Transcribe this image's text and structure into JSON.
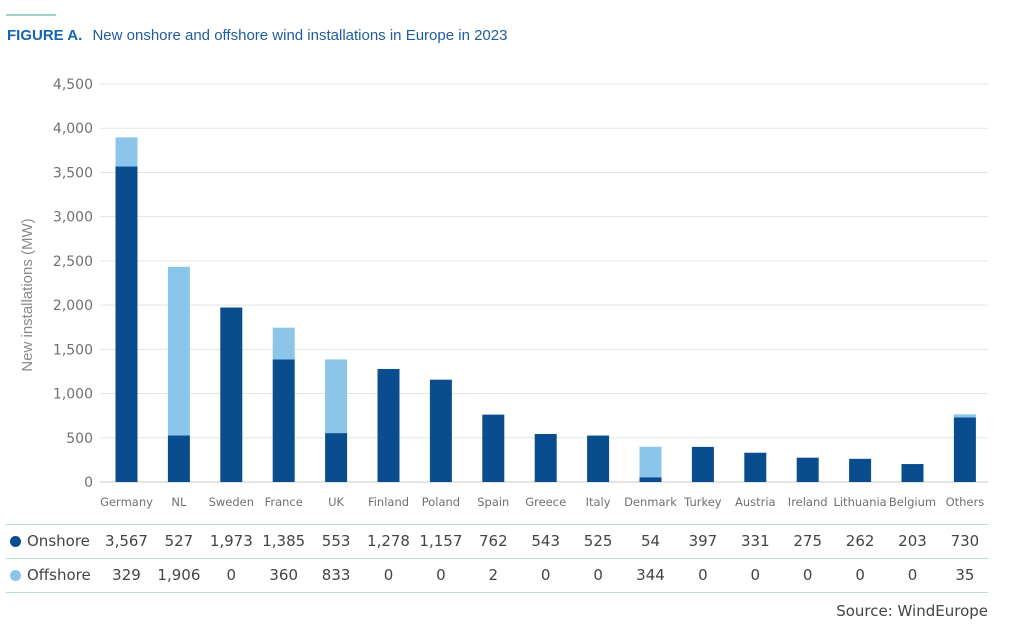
{
  "figure": {
    "label": "FIGURE A.",
    "title": "New onshore and offshore wind installations in Europe in 2023"
  },
  "source": "Source: WindEurope",
  "colors": {
    "onshore": "#0a4d8f",
    "offshore": "#8cc5ea",
    "grid": "#e3e3e3",
    "table_rule": "#b9dfd3"
  },
  "chart_data": {
    "type": "bar",
    "stacked": true,
    "title": "New onshore and offshore wind installations in Europe in 2023",
    "xlabel": "",
    "ylabel": "New installations (MW)",
    "ylim": [
      0,
      4500
    ],
    "yticks": [
      0,
      500,
      1000,
      1500,
      2000,
      2500,
      3000,
      3500,
      4000,
      4500
    ],
    "ytick_labels": [
      "0",
      "500",
      "1,000",
      "1,500",
      "2,000",
      "2,500",
      "3,000",
      "3,500",
      "4,000",
      "4,500"
    ],
    "grid": true,
    "categories": [
      "Germany",
      "NL",
      "Sweden",
      "France",
      "UK",
      "Finland",
      "Poland",
      "Spain",
      "Greece",
      "Italy",
      "Denmark",
      "Turkey",
      "Austria",
      "Ireland",
      "Lithuania",
      "Belgium",
      "Others"
    ],
    "series": [
      {
        "name": "Onshore",
        "color": "#0a4d8f",
        "values": [
          3567,
          527,
          1973,
          1385,
          553,
          1278,
          1157,
          762,
          543,
          525,
          54,
          397,
          331,
          275,
          262,
          203,
          730
        ],
        "labels": [
          "3,567",
          "527",
          "1,973",
          "1,385",
          "553",
          "1,278",
          "1,157",
          "762",
          "543",
          "525",
          "54",
          "397",
          "331",
          "275",
          "262",
          "203",
          "730"
        ]
      },
      {
        "name": "Offshore",
        "color": "#8cc5ea",
        "values": [
          329,
          1906,
          0,
          360,
          833,
          0,
          0,
          2,
          0,
          0,
          344,
          0,
          0,
          0,
          0,
          0,
          35
        ],
        "labels": [
          "329",
          "1,906",
          "0",
          "360",
          "833",
          "0",
          "0",
          "2",
          "0",
          "0",
          "344",
          "0",
          "0",
          "0",
          "0",
          "0",
          "35"
        ]
      }
    ]
  }
}
